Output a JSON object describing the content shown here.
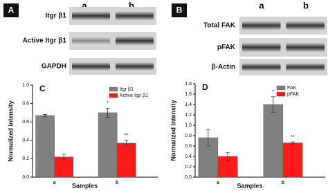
{
  "blots": [
    {
      "panel": "A",
      "lanes": [
        "a",
        "b"
      ],
      "rows": [
        "Itgr β1",
        "Active Itgr β1",
        "GAPDH"
      ]
    },
    {
      "panel": "B",
      "lanes": [
        "a",
        "b"
      ],
      "rows": [
        "Total FAK",
        "pFAK",
        "β-Actin"
      ]
    }
  ],
  "chart_data": [
    {
      "type": "bar",
      "panel": "C",
      "ylabel": "Normalized intensity",
      "xlabel": "Samples",
      "categories": [
        "a",
        "b"
      ],
      "legend": "upper right",
      "ylim": [
        0,
        1.0
      ],
      "yticks": [
        {
          "value": 0,
          "label": "0.0"
        },
        {
          "value": 0.2,
          "label": "0.2"
        },
        {
          "value": 0.4,
          "label": "0.4"
        },
        {
          "value": 0.6,
          "label": "0.6"
        },
        {
          "value": 0.8,
          "label": "0.8"
        },
        {
          "value": 1.0,
          "label": "1.0"
        }
      ],
      "series": [
        {
          "name": "Itgr β1",
          "color": "#808080",
          "values": [
            0.67,
            0.7
          ],
          "errors": [
            0.01,
            0.05
          ],
          "significance": [
            null,
            "*"
          ]
        },
        {
          "name": "Active Itgr β1",
          "color": "#ff1a1a",
          "values": [
            0.22,
            0.37
          ],
          "errors": [
            0.03,
            0.03
          ],
          "significance": [
            null,
            "**"
          ]
        }
      ]
    },
    {
      "type": "bar",
      "panel": "D",
      "ylabel": "Normalized intensity",
      "xlabel": "Samples",
      "categories": [
        "a",
        "b"
      ],
      "legend": "upper right",
      "ylim": [
        0,
        1.8
      ],
      "yticks": [
        {
          "value": 0,
          "label": "0.0"
        },
        {
          "value": 0.2,
          "label": "0.2"
        },
        {
          "value": 0.4,
          "label": "0.4"
        },
        {
          "value": 0.6,
          "label": "0.6"
        },
        {
          "value": 0.8,
          "label": "0.8"
        },
        {
          "value": 1.0,
          "label": "1.0"
        },
        {
          "value": 1.2,
          "label": "1.2"
        },
        {
          "value": 1.4,
          "label": "1.4"
        },
        {
          "value": 1.6,
          "label": "1.6"
        },
        {
          "value": 1.8,
          "label": "1.8"
        }
      ],
      "series": [
        {
          "name": "FAK",
          "color": "#808080",
          "values": [
            0.76,
            1.4
          ],
          "errors": [
            0.16,
            0.15
          ],
          "significance": [
            null,
            "*"
          ]
        },
        {
          "name": "pFAK",
          "color": "#ff1a1a",
          "values": [
            0.4,
            0.66
          ],
          "errors": [
            0.07,
            0.02
          ],
          "significance": [
            null,
            "**"
          ]
        }
      ]
    }
  ]
}
